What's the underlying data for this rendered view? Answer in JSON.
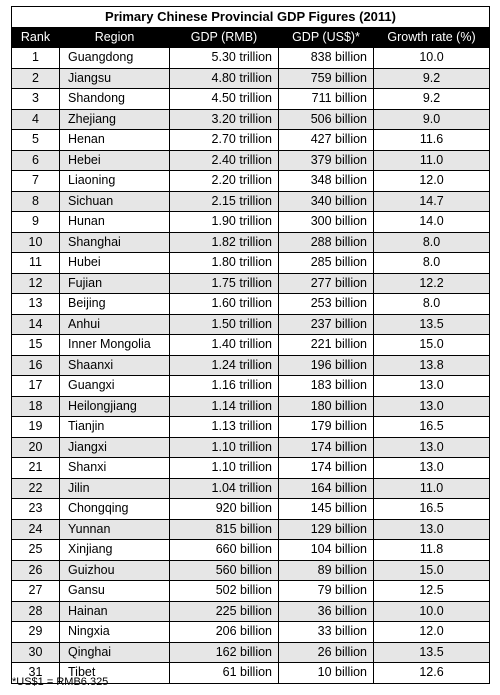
{
  "chart_data": {
    "type": "table",
    "title": "Primary Chinese Provincial GDP Figures (2011)",
    "columns": [
      "Rank",
      "Region",
      "GDP (RMB)",
      "GDP (US$)*",
      "Growth rate (%)"
    ],
    "rows": [
      [
        "1",
        "Guangdong",
        "5.30 trillion",
        "838 billion",
        "10.0"
      ],
      [
        "2",
        "Jiangsu",
        "4.80 trillion",
        "759 billion",
        "9.2"
      ],
      [
        "3",
        "Shandong",
        "4.50 trillion",
        "711 billion",
        "9.2"
      ],
      [
        "4",
        "Zhejiang",
        "3.20 trillion",
        "506 billion",
        "9.0"
      ],
      [
        "5",
        "Henan",
        "2.70 trillion",
        "427 billion",
        "11.6"
      ],
      [
        "6",
        "Hebei",
        "2.40 trillion",
        "379 billion",
        "11.0"
      ],
      [
        "7",
        "Liaoning",
        "2.20 trillion",
        "348 billion",
        "12.0"
      ],
      [
        "8",
        "Sichuan",
        "2.15 trillion",
        "340 billion",
        "14.7"
      ],
      [
        "9",
        "Hunan",
        "1.90 trillion",
        "300 billion",
        "14.0"
      ],
      [
        "10",
        "Shanghai",
        "1.82 trillion",
        "288 billion",
        "8.0"
      ],
      [
        "11",
        "Hubei",
        "1.80 trillion",
        "285 billion",
        "8.0"
      ],
      [
        "12",
        "Fujian",
        "1.75 trillion",
        "277 billion",
        "12.2"
      ],
      [
        "13",
        "Beijing",
        "1.60 trillion",
        "253 billion",
        "8.0"
      ],
      [
        "14",
        "Anhui",
        "1.50 trillion",
        "237 billion",
        "13.5"
      ],
      [
        "15",
        "Inner Mongolia",
        "1.40 trillion",
        "221 billion",
        "15.0"
      ],
      [
        "16",
        "Shaanxi",
        "1.24 trillion",
        "196 billion",
        "13.8"
      ],
      [
        "17",
        "Guangxi",
        "1.16 trillion",
        "183 billion",
        "13.0"
      ],
      [
        "18",
        "Heilongjiang",
        "1.14 trillion",
        "180 billion",
        "13.0"
      ],
      [
        "19",
        "Tianjin",
        "1.13 trillion",
        "179 billion",
        "16.5"
      ],
      [
        "20",
        "Jiangxi",
        "1.10 trillion",
        "174 billion",
        "13.0"
      ],
      [
        "21",
        "Shanxi",
        "1.10 trillion",
        "174 billion",
        "13.0"
      ],
      [
        "22",
        "Jilin",
        "1.04 trillion",
        "164 billion",
        "11.0"
      ],
      [
        "23",
        "Chongqing",
        "920 billion",
        "145 billion",
        "16.5"
      ],
      [
        "24",
        "Yunnan",
        "815 billion",
        "129 billion",
        "13.0"
      ],
      [
        "25",
        "Xinjiang",
        "660 billion",
        "104 billion",
        "11.8"
      ],
      [
        "26",
        "Guizhou",
        "560 billion",
        "89 billion",
        "15.0"
      ],
      [
        "27",
        "Gansu",
        "502 billion",
        "79 billion",
        "12.5"
      ],
      [
        "28",
        "Hainan",
        "225 billion",
        "36 billion",
        "10.0"
      ],
      [
        "29",
        "Ningxia",
        "206 billion",
        "33 billion",
        "12.0"
      ],
      [
        "30",
        "Qinghai",
        "162 billion",
        "26 billion",
        "13.5"
      ],
      [
        "31",
        "Tibet",
        "61 billion",
        "10 billion",
        "12.6"
      ]
    ],
    "footnote": "*US$1 = RMB6.325",
    "colors": {
      "header_bg": "#000000",
      "header_text": "#ffffff",
      "stripe": "#e6e6e6"
    }
  }
}
